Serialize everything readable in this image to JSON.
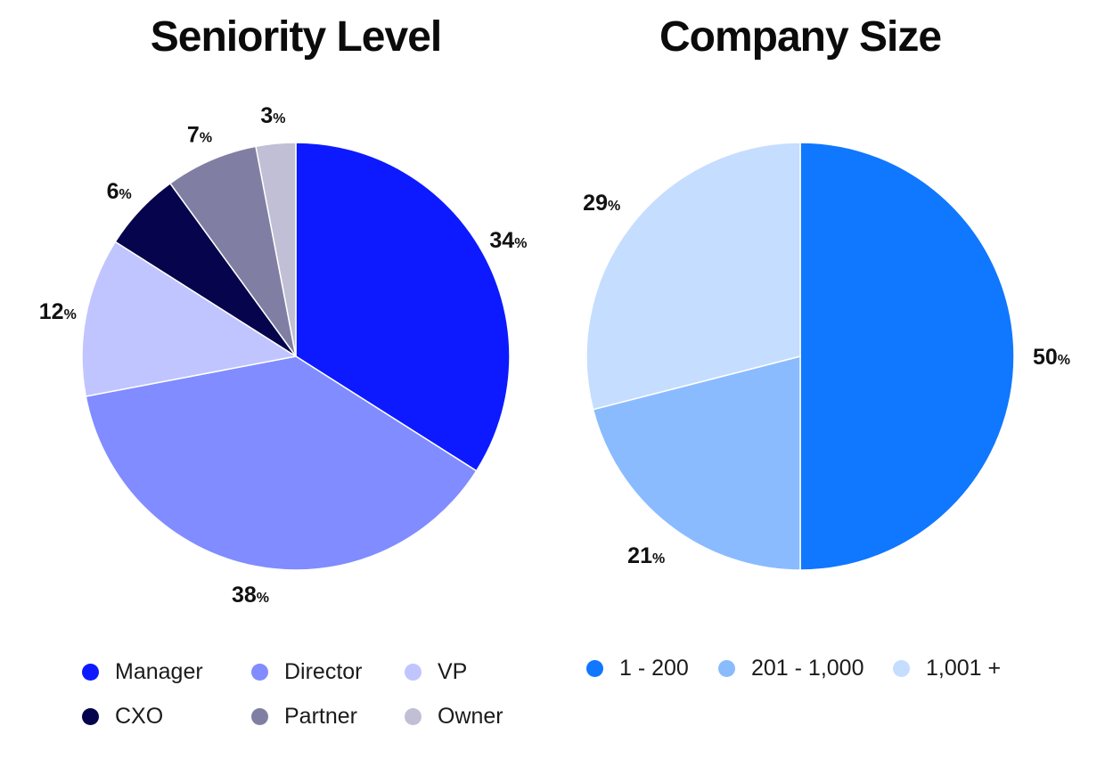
{
  "chart_data": [
    {
      "type": "pie",
      "title": "Seniority Level",
      "label_suffix": "%",
      "categories": [
        "Manager",
        "Director",
        "VP",
        "CXO",
        "Partner",
        "Owner"
      ],
      "values": [
        34,
        38,
        12,
        6,
        7,
        3
      ],
      "colors": [
        "#0d1aff",
        "#808cff",
        "#c0c5ff",
        "#05044c",
        "#807fa3",
        "#c0bfd6"
      ],
      "legend_position": "bottom"
    },
    {
      "type": "pie",
      "title": "Company Size",
      "label_suffix": "%",
      "categories": [
        "1 - 200",
        "201 - 1,000",
        "1,001 +"
      ],
      "values": [
        50,
        21,
        29
      ],
      "colors": [
        "#1077ff",
        "#8abbff",
        "#c5ddff"
      ],
      "legend_position": "bottom"
    }
  ]
}
